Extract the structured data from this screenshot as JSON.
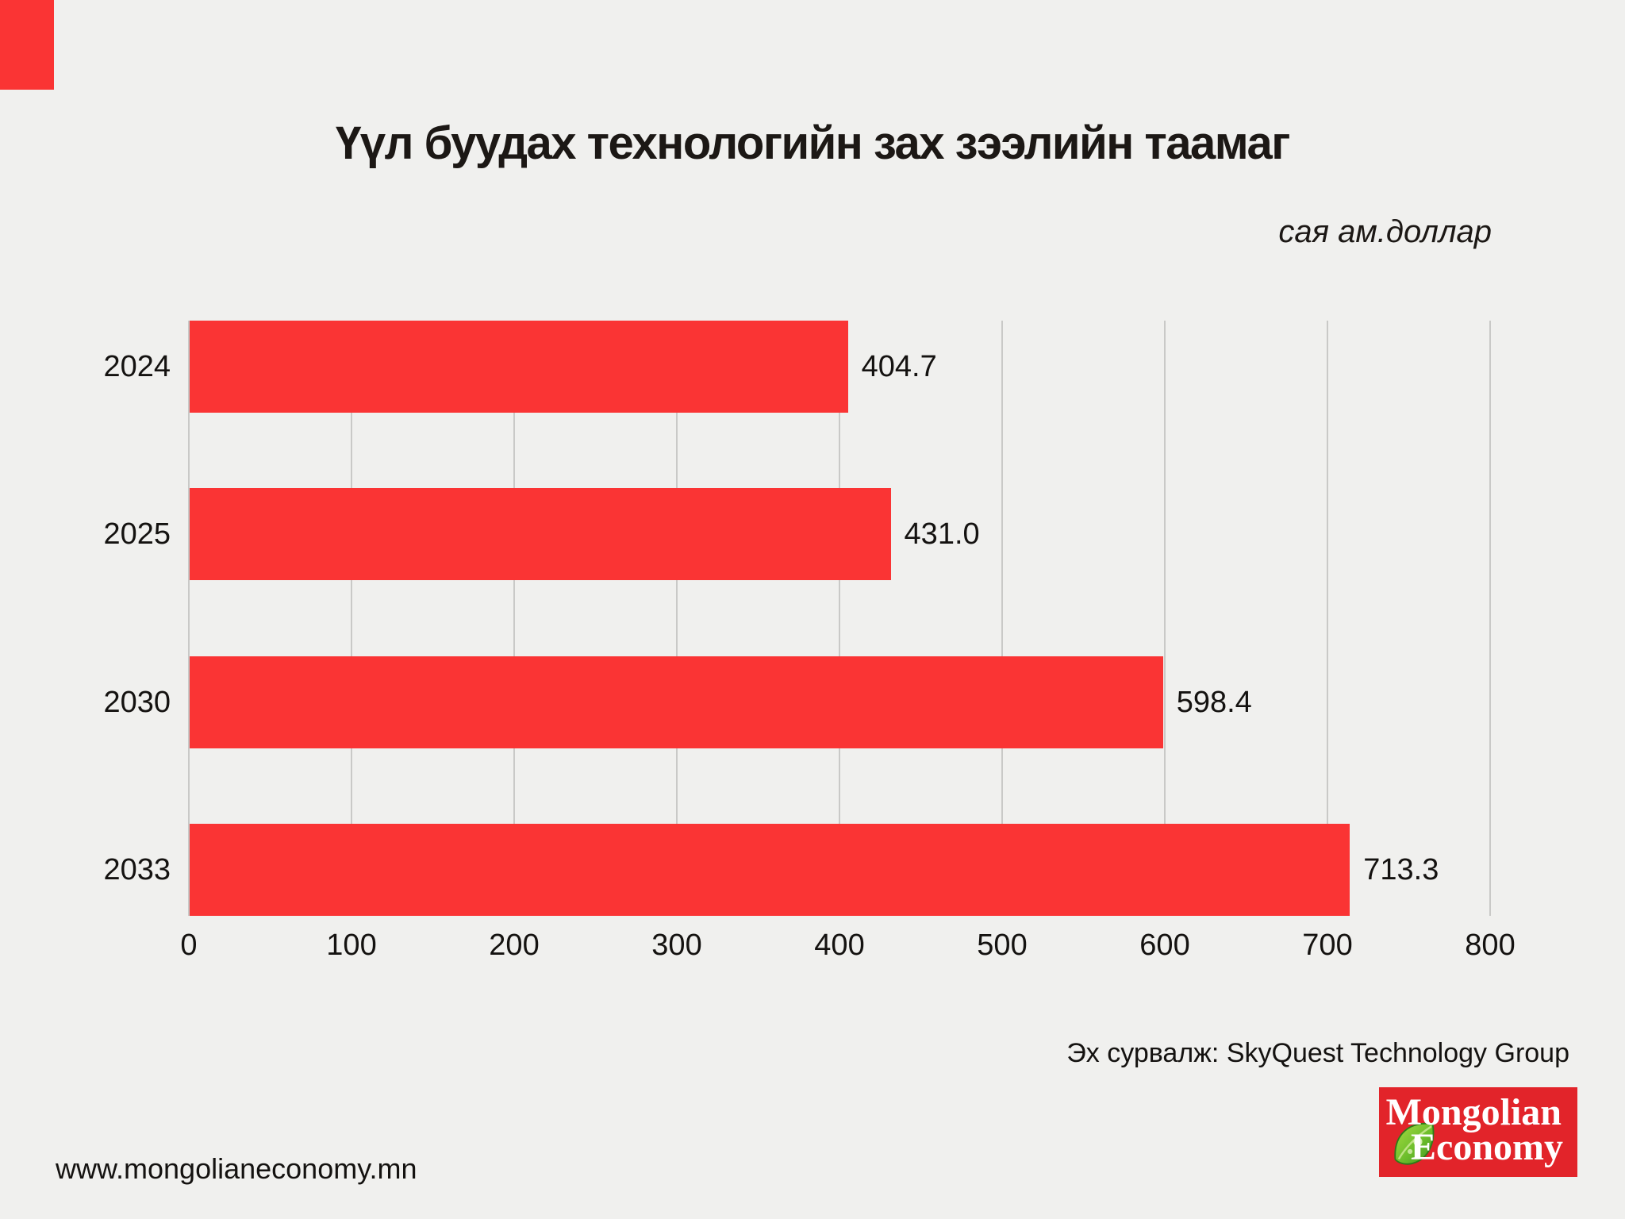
{
  "page": {
    "background": "#F0F0EE",
    "accent_red": "#FA3434",
    "url": "www.mongolianeconomy.mn",
    "source": "Эх сурвалж: SkyQuest Technology Group"
  },
  "header": {
    "title": "Үүл буудах технологийн зах зээлийн таамаг",
    "unit_label": "сая ам.доллар"
  },
  "chart_data": {
    "type": "bar",
    "orientation": "horizontal",
    "title": "Үүл буудах технологийн зах зээлийн таамаг",
    "unit": "сая ам.доллар",
    "categories": [
      "2024",
      "2025",
      "2030",
      "2033"
    ],
    "values": [
      404.7,
      431.0,
      598.4,
      713.3
    ],
    "value_labels": [
      "404.7",
      "431.0",
      "598.4",
      "713.3"
    ],
    "xlim": [
      0,
      800
    ],
    "xticks": [
      0,
      100,
      200,
      300,
      400,
      500,
      600,
      700,
      800
    ],
    "grid": true,
    "bar_color": "#FA3434",
    "gridline_color": "#C9C9C7"
  },
  "logo": {
    "line1": "Mongolian",
    "line2": "Economy",
    "box_color": "#E2242A",
    "leaf_icon": "leaf-icon",
    "leaf_green_light": "#9ED53C",
    "leaf_green_dark": "#3E9420"
  }
}
